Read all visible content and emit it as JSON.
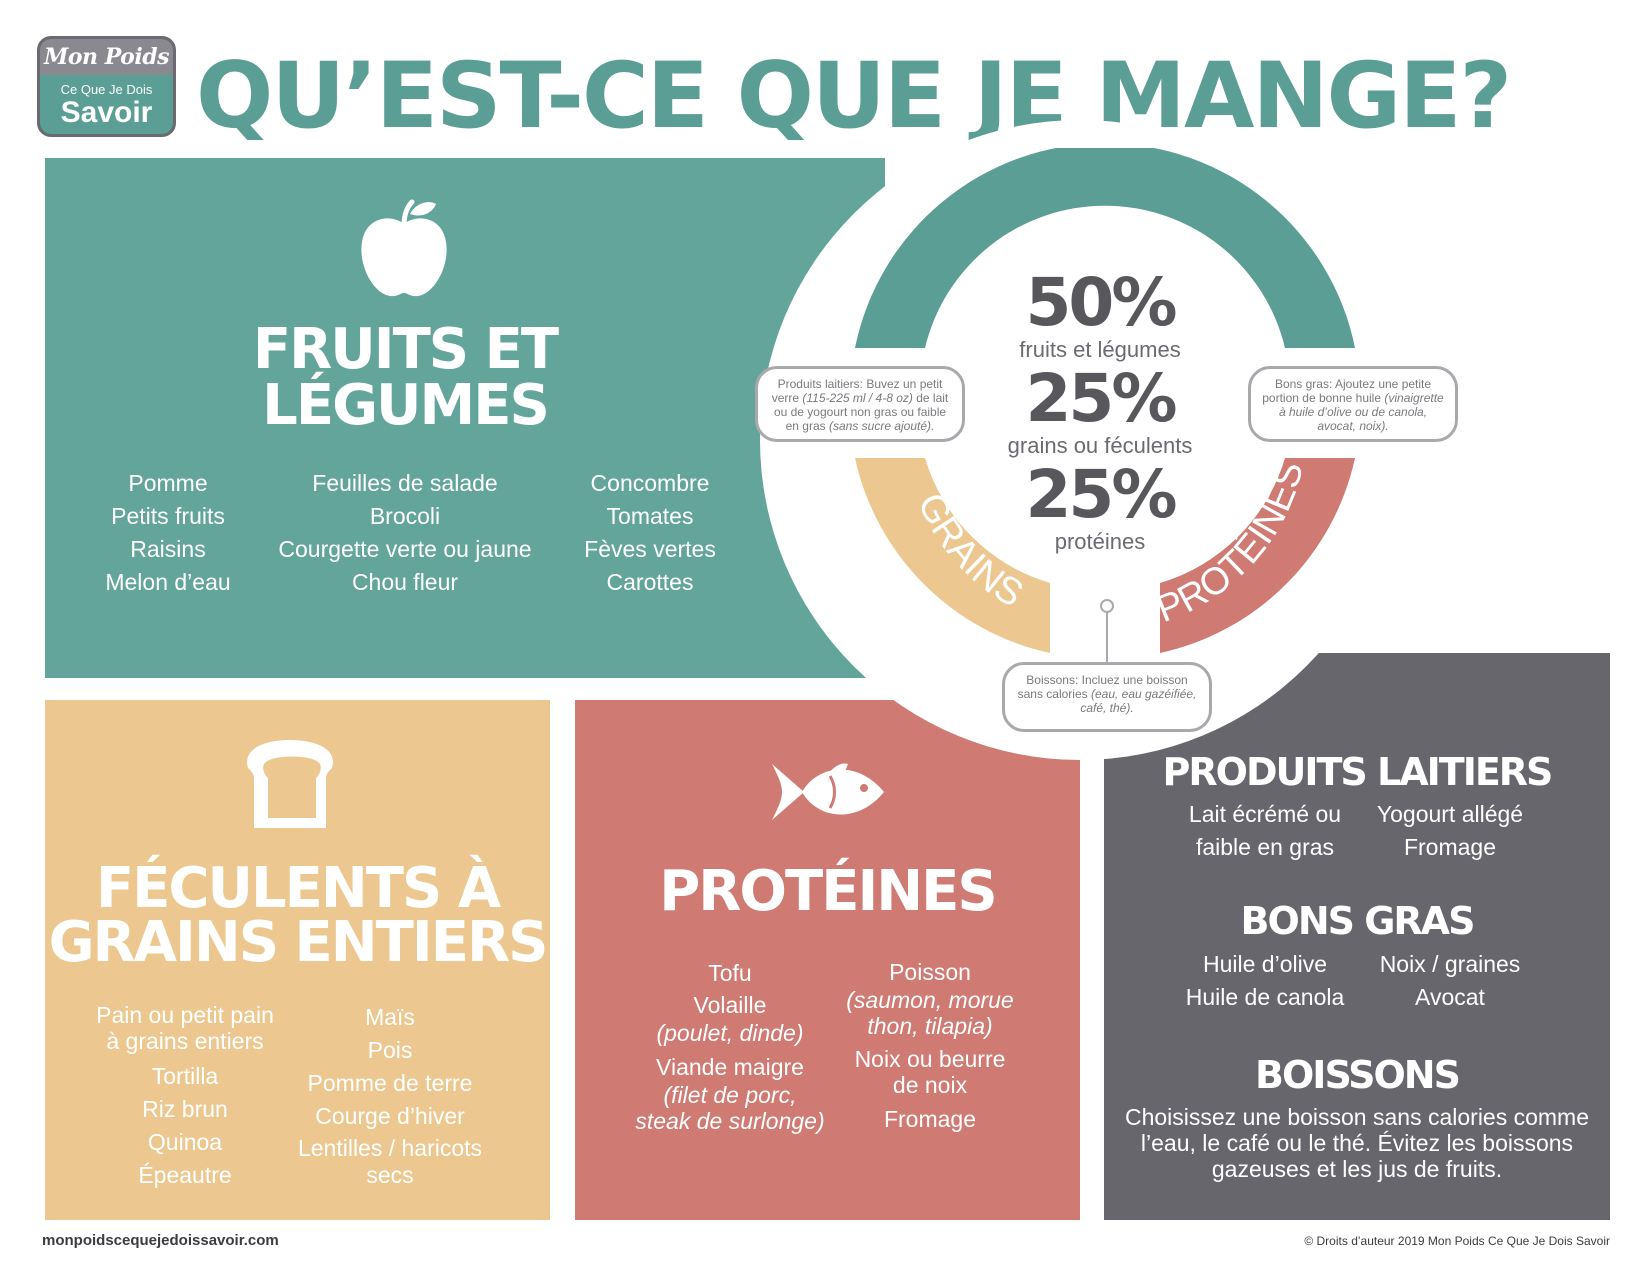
{
  "logo": {
    "top": "Mon Poids",
    "sub": "Ce Que Je Dois",
    "main": "Savoir"
  },
  "title": "QU’EST-CE QUE JE MANGE?",
  "fruits": {
    "heading_line1": "FRUITS ET",
    "heading_line2": "LÉGUMES",
    "col1": [
      "Pomme",
      "Petits fruits",
      "Raisins",
      "Melon d’eau"
    ],
    "col2": [
      "Feuilles de salade",
      "Brocoli",
      "Courgette verte ou jaune",
      "Chou fleur"
    ],
    "col3": [
      "Concombre",
      "Tomates",
      "Fèves vertes",
      "Carottes"
    ]
  },
  "plate": {
    "ring_fruits": "FRUITS ET LÉGUMES",
    "ring_grains": "GRAINS",
    "ring_proteins": "PROTÉINES",
    "pct1": "50%",
    "label1": "fruits et légumes",
    "pct2": "25%",
    "label2": "grains ou féculents",
    "pct3": "25%",
    "label3": "protéines",
    "colors": {
      "fruits": "#5a9e95",
      "grains": "#ecc890",
      "proteins": "#cf7a72"
    }
  },
  "bubbles": {
    "dairy_a": "Produits laitiers: Buvez un petit verre ",
    "dairy_b": "(115-225 ml / 4-8 oz)",
    "dairy_c": " de lait ou de yogourt non gras ou faible en gras ",
    "dairy_d": "(sans sucre ajouté).",
    "fats_a": "Bons gras: Ajoutez une petite portion de bonne huile ",
    "fats_b": "(vinaigrette à huile d’olive ou de canola, avocat, noix).",
    "drinks_a": "Boissons: Incluez une boisson sans calories ",
    "drinks_b": "(eau, eau gazéifiée, café, thé)."
  },
  "grains": {
    "heading_line1": "FÉCULENTS À",
    "heading_line2": "GRAINS ENTIERS",
    "col1": [
      "Pain ou petit pain",
      "à grains entiers",
      "Tortilla",
      "Riz brun",
      "Quinoa",
      "Épeautre"
    ],
    "col2": [
      "Maïs",
      "Pois",
      "Pomme de terre",
      "Courge d’hiver",
      "Lentilles / haricots",
      "secs"
    ]
  },
  "proteins": {
    "heading": "PROTÉINES",
    "tofu": "Tofu",
    "volaille": "Volaille",
    "volaille_note": "(poulet, dinde)",
    "viande": "Viande maigre",
    "viande_note1": "(filet de porc,",
    "viande_note2": "steak de surlonge)",
    "poisson": "Poisson",
    "poisson_note1": "(saumon, morue",
    "poisson_note2": "thon, tilapia)",
    "noix1": "Noix ou beurre",
    "noix2": "de noix",
    "fromage": "Fromage"
  },
  "dairy": {
    "heading": "PRODUITS LAITIERS",
    "c1a": "Lait écrémé ou",
    "c1b": "faible en gras",
    "c2a": "Yogourt allégé",
    "c2b": "Fromage",
    "fats_heading": "BONS GRAS",
    "f1": "Huile d’olive",
    "f2": "Huile de canola",
    "f3": "Noix / graines",
    "f4": "Avocat",
    "drinks_heading": "BOISSONS",
    "d1": "Choisissez une boisson sans calories comme",
    "d2": "l’eau, le café ou le thé. Évitez les boissons",
    "d3": "gazeuses et les jus de fruits."
  },
  "footer": {
    "left": "monpoidscequejedoissavoir.com",
    "right": "© Droits d’auteur 2019 Mon Poids Ce Que Je Dois Savoir"
  }
}
